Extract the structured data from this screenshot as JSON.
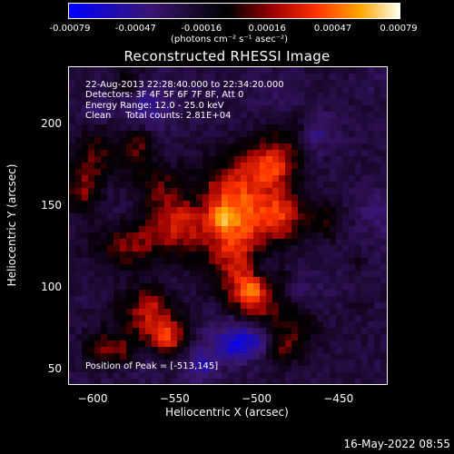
{
  "colorbar": {
    "ticks": [
      "-0.00079",
      "-0.00047",
      "-0.00016",
      "0.00016",
      "0.00047",
      "0.00079"
    ],
    "unit": "(photons cm⁻² s⁻¹ asec⁻²)"
  },
  "chart_data": {
    "type": "heatmap",
    "title": "Reconstructed RHESSI Image",
    "xlabel": "Heliocentric X (arcsec)",
    "ylabel": "Heliocentric Y (arcsec)",
    "xlim": [
      -615,
      -420
    ],
    "ylim": [
      40,
      235
    ],
    "x_ticks": [
      -600,
      -550,
      -500,
      -450
    ],
    "y_ticks": [
      50,
      100,
      150,
      200
    ],
    "color_range": [
      -0.00079,
      0.00079
    ],
    "peak_position": [
      -513,
      145
    ],
    "annotations": {
      "line1": "22-Aug-2013 22:28:40.000 to 22:34:20.000",
      "line2": "Detectors: 3F 4F 5F 6F 7F 8F, Att 0",
      "line3": "Energy Range: 12.0 - 25.0 keV",
      "line4": "Clean     Total counts: 2.81E+04",
      "peak_text": "Position of Peak = [-513,145]"
    }
  },
  "footer": {
    "timestamp": "16-May-2022 08:55"
  },
  "colors": {
    "background": "#000000",
    "colormap": [
      "#0000ff",
      "#3a1670",
      "#000000",
      "#8b0000",
      "#ff3300",
      "#ffa500",
      "#ffff99",
      "#ffffff"
    ]
  }
}
